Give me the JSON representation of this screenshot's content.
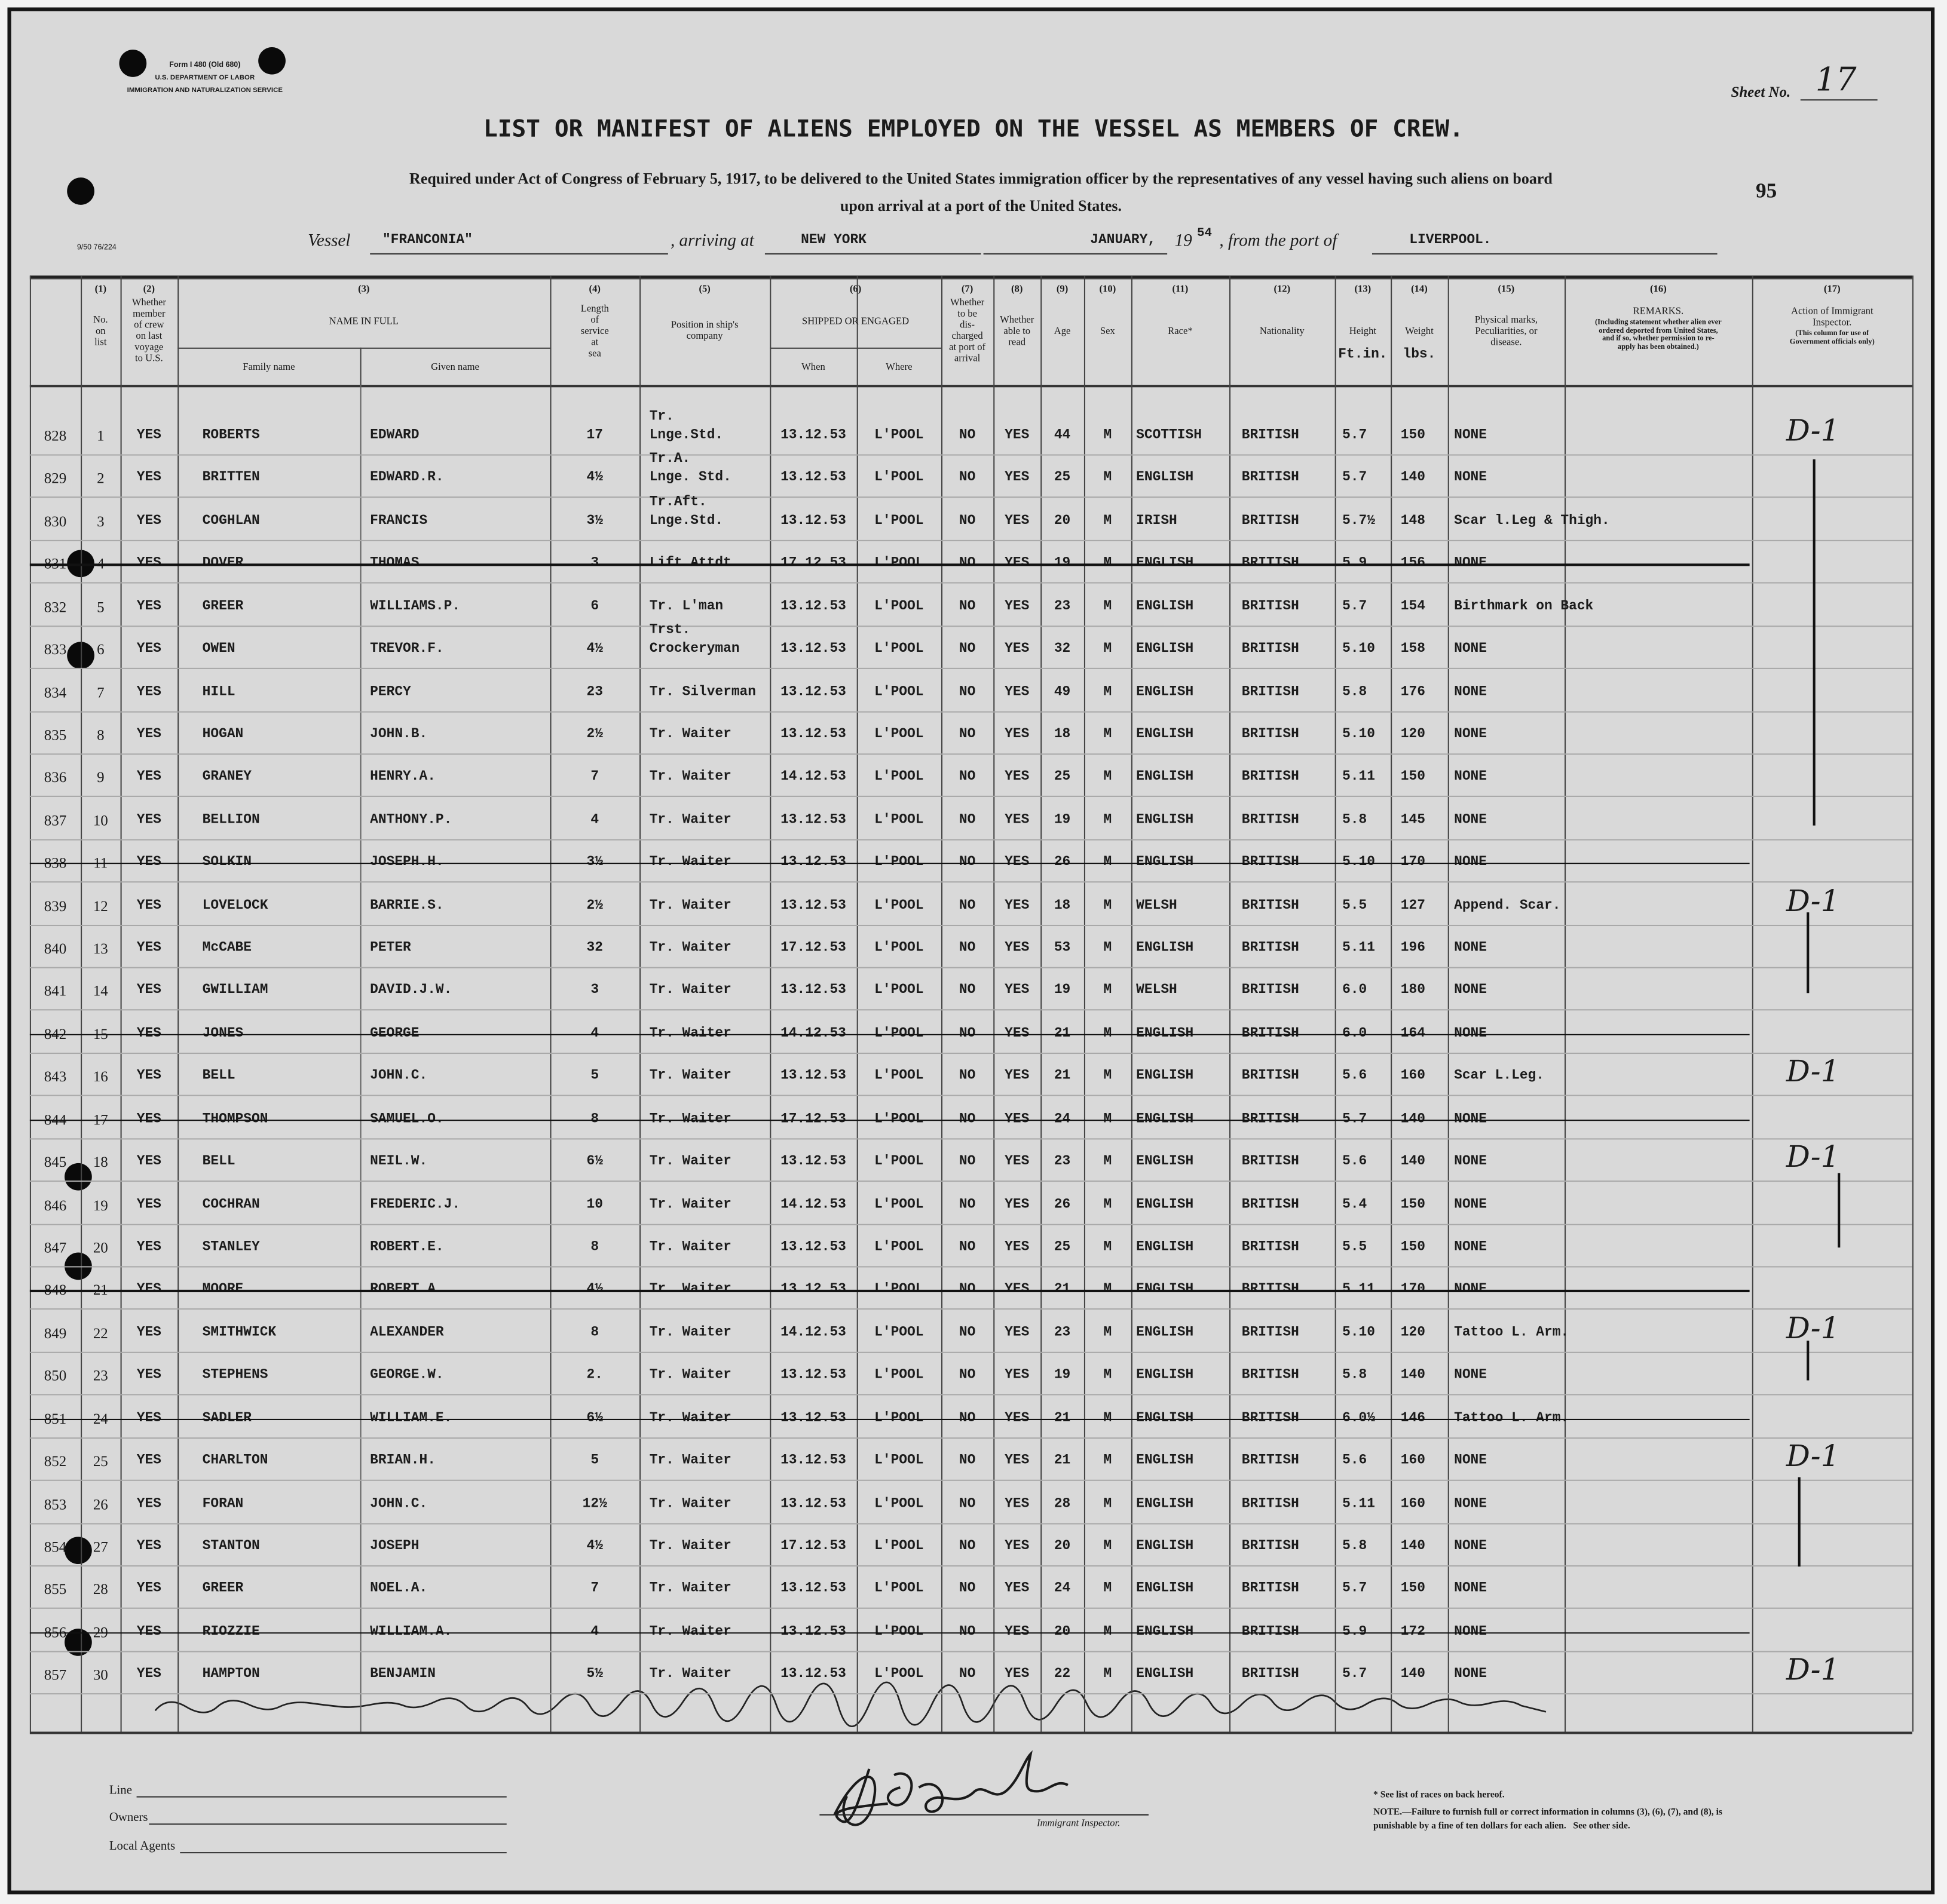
{
  "header": {
    "form": [
      "Form I 480 (Old 680)",
      "U.S. DEPARTMENT OF LABOR",
      "IMMIGRATION AND NATURALIZATION SERVICE"
    ],
    "file_code": "9/50 76/224",
    "sheet_label": "Sheet No.",
    "sheet_number": "17",
    "page_number": "95",
    "title": "LIST OR MANIFEST OF ALIENS EMPLOYED ON THE VESSEL AS MEMBERS OF CREW.",
    "subtitle": [
      "Required under Act of Congress of February 5, 1917, to be delivered to the United States immigration officer by the representatives of any vessel having such aliens on board",
      "upon arrival at a port of the United States."
    ]
  },
  "vessel": {
    "vessel_label": "Vessel",
    "vessel": "\"FRANCONIA\"",
    "arriving_label": ", arriving at",
    "port": "NEW YORK",
    "date": "JANUARY,",
    "year_prefix": "19",
    "year": "54",
    "from_label": ", from the port of",
    "from_port": "LIVERPOOL."
  },
  "table": {
    "columns": [
      {
        "number": "(1)",
        "label": "No.\non\nlist"
      },
      {
        "number": "(2)",
        "label": "Whether\nmember\nof crew\non last\nvoyage\nto U.S."
      },
      {
        "number": "(3)",
        "label": "NAME IN FULL",
        "sub": [
          "Family name",
          "Given name"
        ]
      },
      {
        "number": "(4)",
        "label": "Length\nof\nservice\nat\nsea"
      },
      {
        "number": "(5)",
        "label": "Position in ship's\ncompany"
      },
      {
        "number": "(6)",
        "label": "SHIPPED OR ENGAGED",
        "sub": [
          "When",
          "Where"
        ]
      },
      {
        "number": "(7)",
        "label": "Whether\nto be\ndis-\ncharged\nat port of\narrival"
      },
      {
        "number": "(8)",
        "label": "Whether\nable to\nread"
      },
      {
        "number": "(9)",
        "label": "Age"
      },
      {
        "number": "(10)",
        "label": "Sex"
      },
      {
        "number": "(11)",
        "label": "Race*"
      },
      {
        "number": "(12)",
        "label": "Nationality"
      },
      {
        "number": "(13)",
        "label": "Height",
        "unit": "Ft.in."
      },
      {
        "number": "(14)",
        "label": "Weight",
        "unit": "lbs."
      },
      {
        "number": "(15)",
        "label": "Physical marks,\nPeculiarities, or\ndisease."
      },
      {
        "number": "(16)",
        "label": "REMARKS.",
        "note": "(Including statement whether alien ever\nordered deported from United States,\nand if so, whether permission to re-\napply has been obtained.)"
      },
      {
        "number": "(17)",
        "label": "Action of Immigrant\nInspector.",
        "note": "(This column for use of\nGovernment officials only)"
      }
    ],
    "rows": [
      {
        "cells": [
          "828",
          "1",
          "YES",
          "ROBERTS",
          "EDWARD",
          "17",
          "Tr.\nLnge.Std.",
          "13.12.53",
          "L'POOL",
          "NO",
          "YES",
          "44",
          "M",
          "SCOTTISH",
          "BRITISH",
          "5.7",
          "150",
          "NONE"
        ],
        "struck": false,
        "action": "D-1"
      },
      {
        "cells": [
          "829",
          "2",
          "YES",
          "BRITTEN",
          "EDWARD.R.",
          "4½",
          "Tr.A.\nLnge. Std.",
          "13.12.53",
          "L'POOL",
          "NO",
          "YES",
          "25",
          "M",
          "ENGLISH",
          "BRITISH",
          "5.7",
          "140",
          "NONE"
        ],
        "struck": false
      },
      {
        "cells": [
          "830",
          "3",
          "YES",
          "COGHLAN",
          "FRANCIS",
          "3½",
          "Tr.Aft.\nLnge.Std.",
          "13.12.53",
          "L'POOL",
          "NO",
          "YES",
          "20",
          "M",
          "IRISH",
          "BRITISH",
          "5.7½",
          "148",
          "Scar l.Leg & Thigh."
        ],
        "struck": false
      },
      {
        "cells": [
          "831",
          "4",
          "YES",
          "DOVER",
          "THOMAS",
          "3",
          "Lift Attdt",
          "17.12.53",
          "L'POOL",
          "NO",
          "YES",
          "19",
          "M",
          "ENGLISH",
          "BRITISH",
          "5.9",
          "156",
          "NONE"
        ],
        "struck": true
      },
      {
        "cells": [
          "832",
          "5",
          "YES",
          "GREER",
          "WILLIAMS.P.",
          "6",
          "Tr. L'man",
          "13.12.53",
          "L'POOL",
          "NO",
          "YES",
          "23",
          "M",
          "ENGLISH",
          "BRITISH",
          "5.7",
          "154",
          "Birthmark on Back"
        ],
        "struck": false
      },
      {
        "cells": [
          "833",
          "6",
          "YES",
          "OWEN",
          "TREVOR.F.",
          "4½",
          "Trst.\nCrockeryman",
          "13.12.53",
          "L'POOL",
          "NO",
          "YES",
          "32",
          "M",
          "ENGLISH",
          "BRITISH",
          "5.10",
          "158",
          "NONE"
        ],
        "struck": false
      },
      {
        "cells": [
          "834",
          "7",
          "YES",
          "HILL",
          "PERCY",
          "23",
          "Tr. Silverman",
          "13.12.53",
          "L'POOL",
          "NO",
          "YES",
          "49",
          "M",
          "ENGLISH",
          "BRITISH",
          "5.8",
          "176",
          "NONE"
        ],
        "struck": false
      },
      {
        "cells": [
          "835",
          "8",
          "YES",
          "HOGAN",
          "JOHN.B.",
          "2½",
          "Tr. Waiter",
          "13.12.53",
          "L'POOL",
          "NO",
          "YES",
          "18",
          "M",
          "ENGLISH",
          "BRITISH",
          "5.10",
          "120",
          "NONE"
        ],
        "struck": false
      },
      {
        "cells": [
          "836",
          "9",
          "YES",
          "GRANEY",
          "HENRY.A.",
          "7",
          "Tr. Waiter",
          "14.12.53",
          "L'POOL",
          "NO",
          "YES",
          "25",
          "M",
          "ENGLISH",
          "BRITISH",
          "5.11",
          "150",
          "NONE"
        ],
        "struck": false
      },
      {
        "cells": [
          "837",
          "10",
          "YES",
          "BELLION",
          "ANTHONY.P.",
          "4",
          "Tr. Waiter",
          "13.12.53",
          "L'POOL",
          "NO",
          "YES",
          "19",
          "M",
          "ENGLISH",
          "BRITISH",
          "5.8",
          "145",
          "NONE"
        ],
        "struck": false
      },
      {
        "cells": [
          "838",
          "11",
          "YES",
          "SOLKIN",
          "JOSEPH.H.",
          "3½",
          "Tr. Waiter",
          "13.12.53",
          "L'POOL",
          "NO",
          "YES",
          "26",
          "M",
          "ENGLISH",
          "BRITISH",
          "5.10",
          "170",
          "NONE"
        ],
        "struck": true
      },
      {
        "cells": [
          "839",
          "12",
          "YES",
          "LOVELOCK",
          "BARRIE.S.",
          "2½",
          "Tr. Waiter",
          "13.12.53",
          "L'POOL",
          "NO",
          "YES",
          "18",
          "M",
          "WELSH",
          "BRITISH",
          "5.5",
          "127",
          "Append. Scar."
        ],
        "struck": false,
        "action": "D-1"
      },
      {
        "cells": [
          "840",
          "13",
          "YES",
          "McCABE",
          "PETER",
          "32",
          "Tr. Waiter",
          "17.12.53",
          "L'POOL",
          "NO",
          "YES",
          "53",
          "M",
          "ENGLISH",
          "BRITISH",
          "5.11",
          "196",
          "NONE"
        ],
        "struck": false
      },
      {
        "cells": [
          "841",
          "14",
          "YES",
          "GWILLIAM",
          "DAVID.J.W.",
          "3",
          "Tr. Waiter",
          "13.12.53",
          "L'POOL",
          "NO",
          "YES",
          "19",
          "M",
          "WELSH",
          "BRITISH",
          "6.0",
          "180",
          "NONE"
        ],
        "struck": false
      },
      {
        "cells": [
          "842",
          "15",
          "YES",
          "JONES",
          "GEORGE",
          "4",
          "Tr. Waiter",
          "14.12.53",
          "L'POOL",
          "NO",
          "YES",
          "21",
          "M",
          "ENGLISH",
          "BRITISH",
          "6.0",
          "164",
          "NONE"
        ],
        "struck": true
      },
      {
        "cells": [
          "843",
          "16",
          "YES",
          "BELL",
          "JOHN.C.",
          "5",
          "Tr. Waiter",
          "13.12.53",
          "L'POOL",
          "NO",
          "YES",
          "21",
          "M",
          "ENGLISH",
          "BRITISH",
          "5.6",
          "160",
          "Scar L.Leg."
        ],
        "struck": false,
        "action": "D-1"
      },
      {
        "cells": [
          "844",
          "17",
          "YES",
          "THOMPSON",
          "SAMUEL.O.",
          "8",
          "Tr. Waiter",
          "17.12.53",
          "L'POOL",
          "NO",
          "YES",
          "24",
          "M",
          "ENGLISH",
          "BRITISH",
          "5.7",
          "140",
          "NONE"
        ],
        "struck": true
      },
      {
        "cells": [
          "845",
          "18",
          "YES",
          "BELL",
          "NEIL.W.",
          "6½",
          "Tr. Waiter",
          "13.12.53",
          "L'POOL",
          "NO",
          "YES",
          "23",
          "M",
          "ENGLISH",
          "BRITISH",
          "5.6",
          "140",
          "NONE"
        ],
        "struck": false,
        "action": "D-1"
      },
      {
        "cells": [
          "846",
          "19",
          "YES",
          "COCHRAN",
          "FREDERIC.J.",
          "10",
          "Tr. Waiter",
          "14.12.53",
          "L'POOL",
          "NO",
          "YES",
          "26",
          "M",
          "ENGLISH",
          "BRITISH",
          "5.4",
          "150",
          "NONE"
        ],
        "struck": false
      },
      {
        "cells": [
          "847",
          "20",
          "YES",
          "STANLEY",
          "ROBERT.E.",
          "8",
          "Tr. Waiter",
          "13.12.53",
          "L'POOL",
          "NO",
          "YES",
          "25",
          "M",
          "ENGLISH",
          "BRITISH",
          "5.5",
          "150",
          "NONE"
        ],
        "struck": false
      },
      {
        "cells": [
          "848",
          "21",
          "YES",
          "MOORE",
          "ROBERT.A.",
          "4½",
          "Tr. Waiter",
          "13.12.53",
          "L'POOL",
          "NO",
          "YES",
          "21",
          "M",
          "ENGLISH",
          "BRITISH",
          "5.11",
          "170",
          "NONE"
        ],
        "struck": true
      },
      {
        "cells": [
          "849",
          "22",
          "YES",
          "SMITHWICK",
          "ALEXANDER",
          "8",
          "Tr. Waiter",
          "14.12.53",
          "L'POOL",
          "NO",
          "YES",
          "23",
          "M",
          "ENGLISH",
          "BRITISH",
          "5.10",
          "120",
          "Tattoo L. Arm."
        ],
        "struck": false,
        "action": "D-1"
      },
      {
        "cells": [
          "850",
          "23",
          "YES",
          "STEPHENS",
          "GEORGE.W.",
          "2.",
          "Tr. Waiter",
          "13.12.53",
          "L'POOL",
          "NO",
          "YES",
          "19",
          "M",
          "ENGLISH",
          "BRITISH",
          "5.8",
          "140",
          "NONE"
        ],
        "struck": false
      },
      {
        "cells": [
          "851",
          "24",
          "YES",
          "SADLER",
          "WILLIAM.E.",
          "6½",
          "Tr. Waiter",
          "13.12.53",
          "L'POOL",
          "NO",
          "YES",
          "21",
          "M",
          "ENGLISH",
          "BRITISH",
          "6.0½",
          "146",
          "Tattoo L. Arm."
        ],
        "struck": true
      },
      {
        "cells": [
          "852",
          "25",
          "YES",
          "CHARLTON",
          "BRIAN.H.",
          "5",
          "Tr. Waiter",
          "13.12.53",
          "L'POOL",
          "NO",
          "YES",
          "21",
          "M",
          "ENGLISH",
          "BRITISH",
          "5.6",
          "160",
          "NONE"
        ],
        "struck": false,
        "action": "D-1"
      },
      {
        "cells": [
          "853",
          "26",
          "YES",
          "FORAN",
          "JOHN.C.",
          "12½",
          "Tr. Waiter",
          "13.12.53",
          "L'POOL",
          "NO",
          "YES",
          "28",
          "M",
          "ENGLISH",
          "BRITISH",
          "5.11",
          "160",
          "NONE"
        ],
        "struck": false
      },
      {
        "cells": [
          "854",
          "27",
          "YES",
          "STANTON",
          "JOSEPH",
          "4½",
          "Tr. Waiter",
          "17.12.53",
          "L'POOL",
          "NO",
          "YES",
          "20",
          "M",
          "ENGLISH",
          "BRITISH",
          "5.8",
          "140",
          "NONE"
        ],
        "struck": false
      },
      {
        "cells": [
          "855",
          "28",
          "YES",
          "GREER",
          "NOEL.A.",
          "7",
          "Tr. Waiter",
          "13.12.53",
          "L'POOL",
          "NO",
          "YES",
          "24",
          "M",
          "ENGLISH",
          "BRITISH",
          "5.7",
          "150",
          "NONE"
        ],
        "struck": false
      },
      {
        "cells": [
          "856",
          "29",
          "YES",
          "RIOZZIE",
          "WILLIAM.A.",
          "4",
          "Tr. Waiter",
          "13.12.53",
          "L'POOL",
          "NO",
          "YES",
          "20",
          "M",
          "ENGLISH",
          "BRITISH",
          "5.9",
          "172",
          "NONE"
        ],
        "struck": true
      },
      {
        "cells": [
          "857",
          "30",
          "YES",
          "HAMPTON",
          "BENJAMIN",
          "5½",
          "Tr. Waiter",
          "13.12.53",
          "L'POOL",
          "NO",
          "YES",
          "22",
          "M",
          "ENGLISH",
          "BRITISH",
          "5.7",
          "140",
          "NONE"
        ],
        "struck": false,
        "action": "D-1"
      }
    ]
  },
  "footer": {
    "line_label": "Line",
    "owners_label": "Owners",
    "agents_label": "Local Agents",
    "inspector_label": "Immigrant Inspector.",
    "races_note": "* See list of races on back hereof.",
    "note": "NOTE.—Failure to furnish full or correct information in columns (3), (6), (7), and (8), is\npunishable by a fine of ten dollars for each alien.   See other side."
  }
}
